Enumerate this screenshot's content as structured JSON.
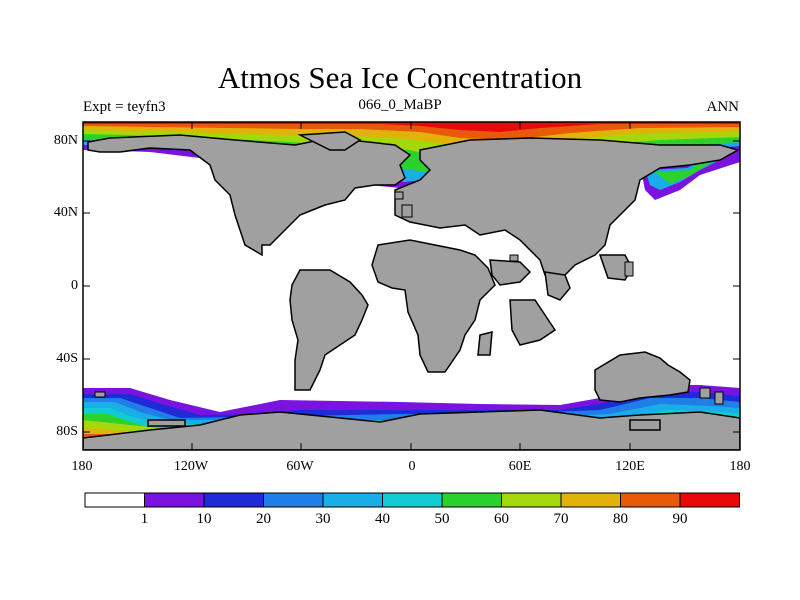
{
  "title": "Atmos Sea Ice Concentration",
  "subtitle_left": "Expt = teyfn3",
  "subtitle_center": "066_0_MaBP",
  "subtitle_right": "ANN",
  "lat_labels": [
    "80N",
    "40N",
    "0",
    "40S",
    "80S"
  ],
  "lon_labels": [
    "180",
    "120W",
    "60W",
    "0",
    "60E",
    "120E",
    "180"
  ],
  "colorbar": {
    "colors": [
      "#ffffff",
      "#7a12e0",
      "#1f2bd8",
      "#1f7fe6",
      "#1aaee8",
      "#12ccd2",
      "#2dd12d",
      "#a4d80a",
      "#e0b20a",
      "#e85a0a",
      "#e80a0a"
    ],
    "labels": [
      "1",
      "10",
      "20",
      "30",
      "40",
      "50",
      "60",
      "70",
      "80",
      "90"
    ]
  },
  "colors": {
    "land": "#a0a0a0",
    "ocean": "#ffffff"
  }
}
